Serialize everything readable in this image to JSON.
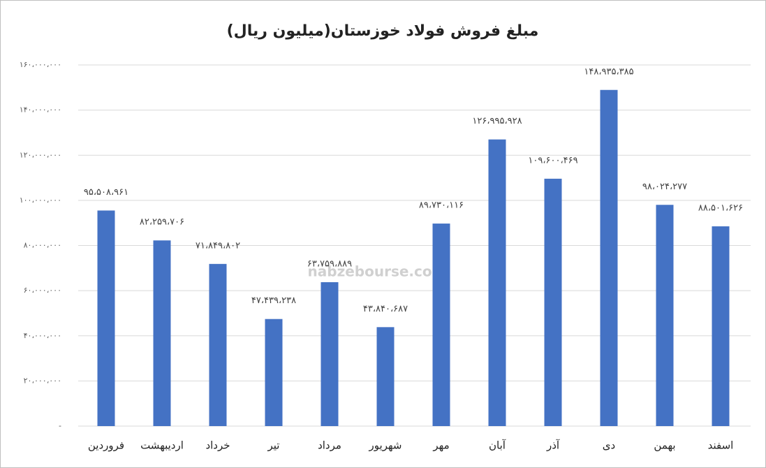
{
  "chart_data": {
    "type": "bar",
    "title": "مبلغ فروش فولاد خوزستان(میلیون ریال)",
    "watermark": "nabzebourse.com",
    "categories": [
      "فروردین",
      "اردیبهشت",
      "خرداد",
      "تیر",
      "مرداد",
      "شهریور",
      "مهر",
      "آبان",
      "آذر",
      "دی",
      "بهمن",
      "اسفند"
    ],
    "values": [
      95508961,
      82259706,
      71849802,
      47439238,
      63759889,
      43840687,
      89730116,
      126995928,
      109600469,
      148935385,
      98024277,
      88501626
    ],
    "value_labels": [
      "۹۵،۵۰۸،۹۶۱",
      "۸۲،۲۵۹،۷۰۶",
      "۷۱،۸۴۹،۸۰۲",
      "۴۷،۴۳۹،۲۳۸",
      "۶۳،۷۵۹،۸۸۹",
      "۴۳،۸۴۰،۶۸۷",
      "۸۹،۷۳۰،۱۱۶",
      "۱۲۶،۹۹۵،۹۲۸",
      "۱۰۹،۶۰۰،۴۶۹",
      "۱۴۸،۹۳۵،۳۸۵",
      "۹۸،۰۲۴،۲۷۷",
      "۸۸،۵۰۱،۶۲۶"
    ],
    "color": "#4472c4",
    "ylim": [
      0,
      160000000
    ],
    "yticks": [
      {
        "value": 0,
        "label": "-"
      },
      {
        "value": 20000000,
        "label": "۲۰،۰۰۰،۰۰۰"
      },
      {
        "value": 40000000,
        "label": "۴۰،۰۰۰،۰۰۰"
      },
      {
        "value": 60000000,
        "label": "۶۰،۰۰۰،۰۰۰"
      },
      {
        "value": 80000000,
        "label": "۸۰،۰۰۰،۰۰۰"
      },
      {
        "value": 100000000,
        "label": "۱۰۰،۰۰۰،۰۰۰"
      },
      {
        "value": 120000000,
        "label": "۱۲۰،۰۰۰،۰۰۰"
      },
      {
        "value": 140000000,
        "label": "۱۴۰،۰۰۰،۰۰۰"
      },
      {
        "value": 160000000,
        "label": "۱۶۰،۰۰۰،۰۰۰"
      }
    ],
    "grid": true
  }
}
